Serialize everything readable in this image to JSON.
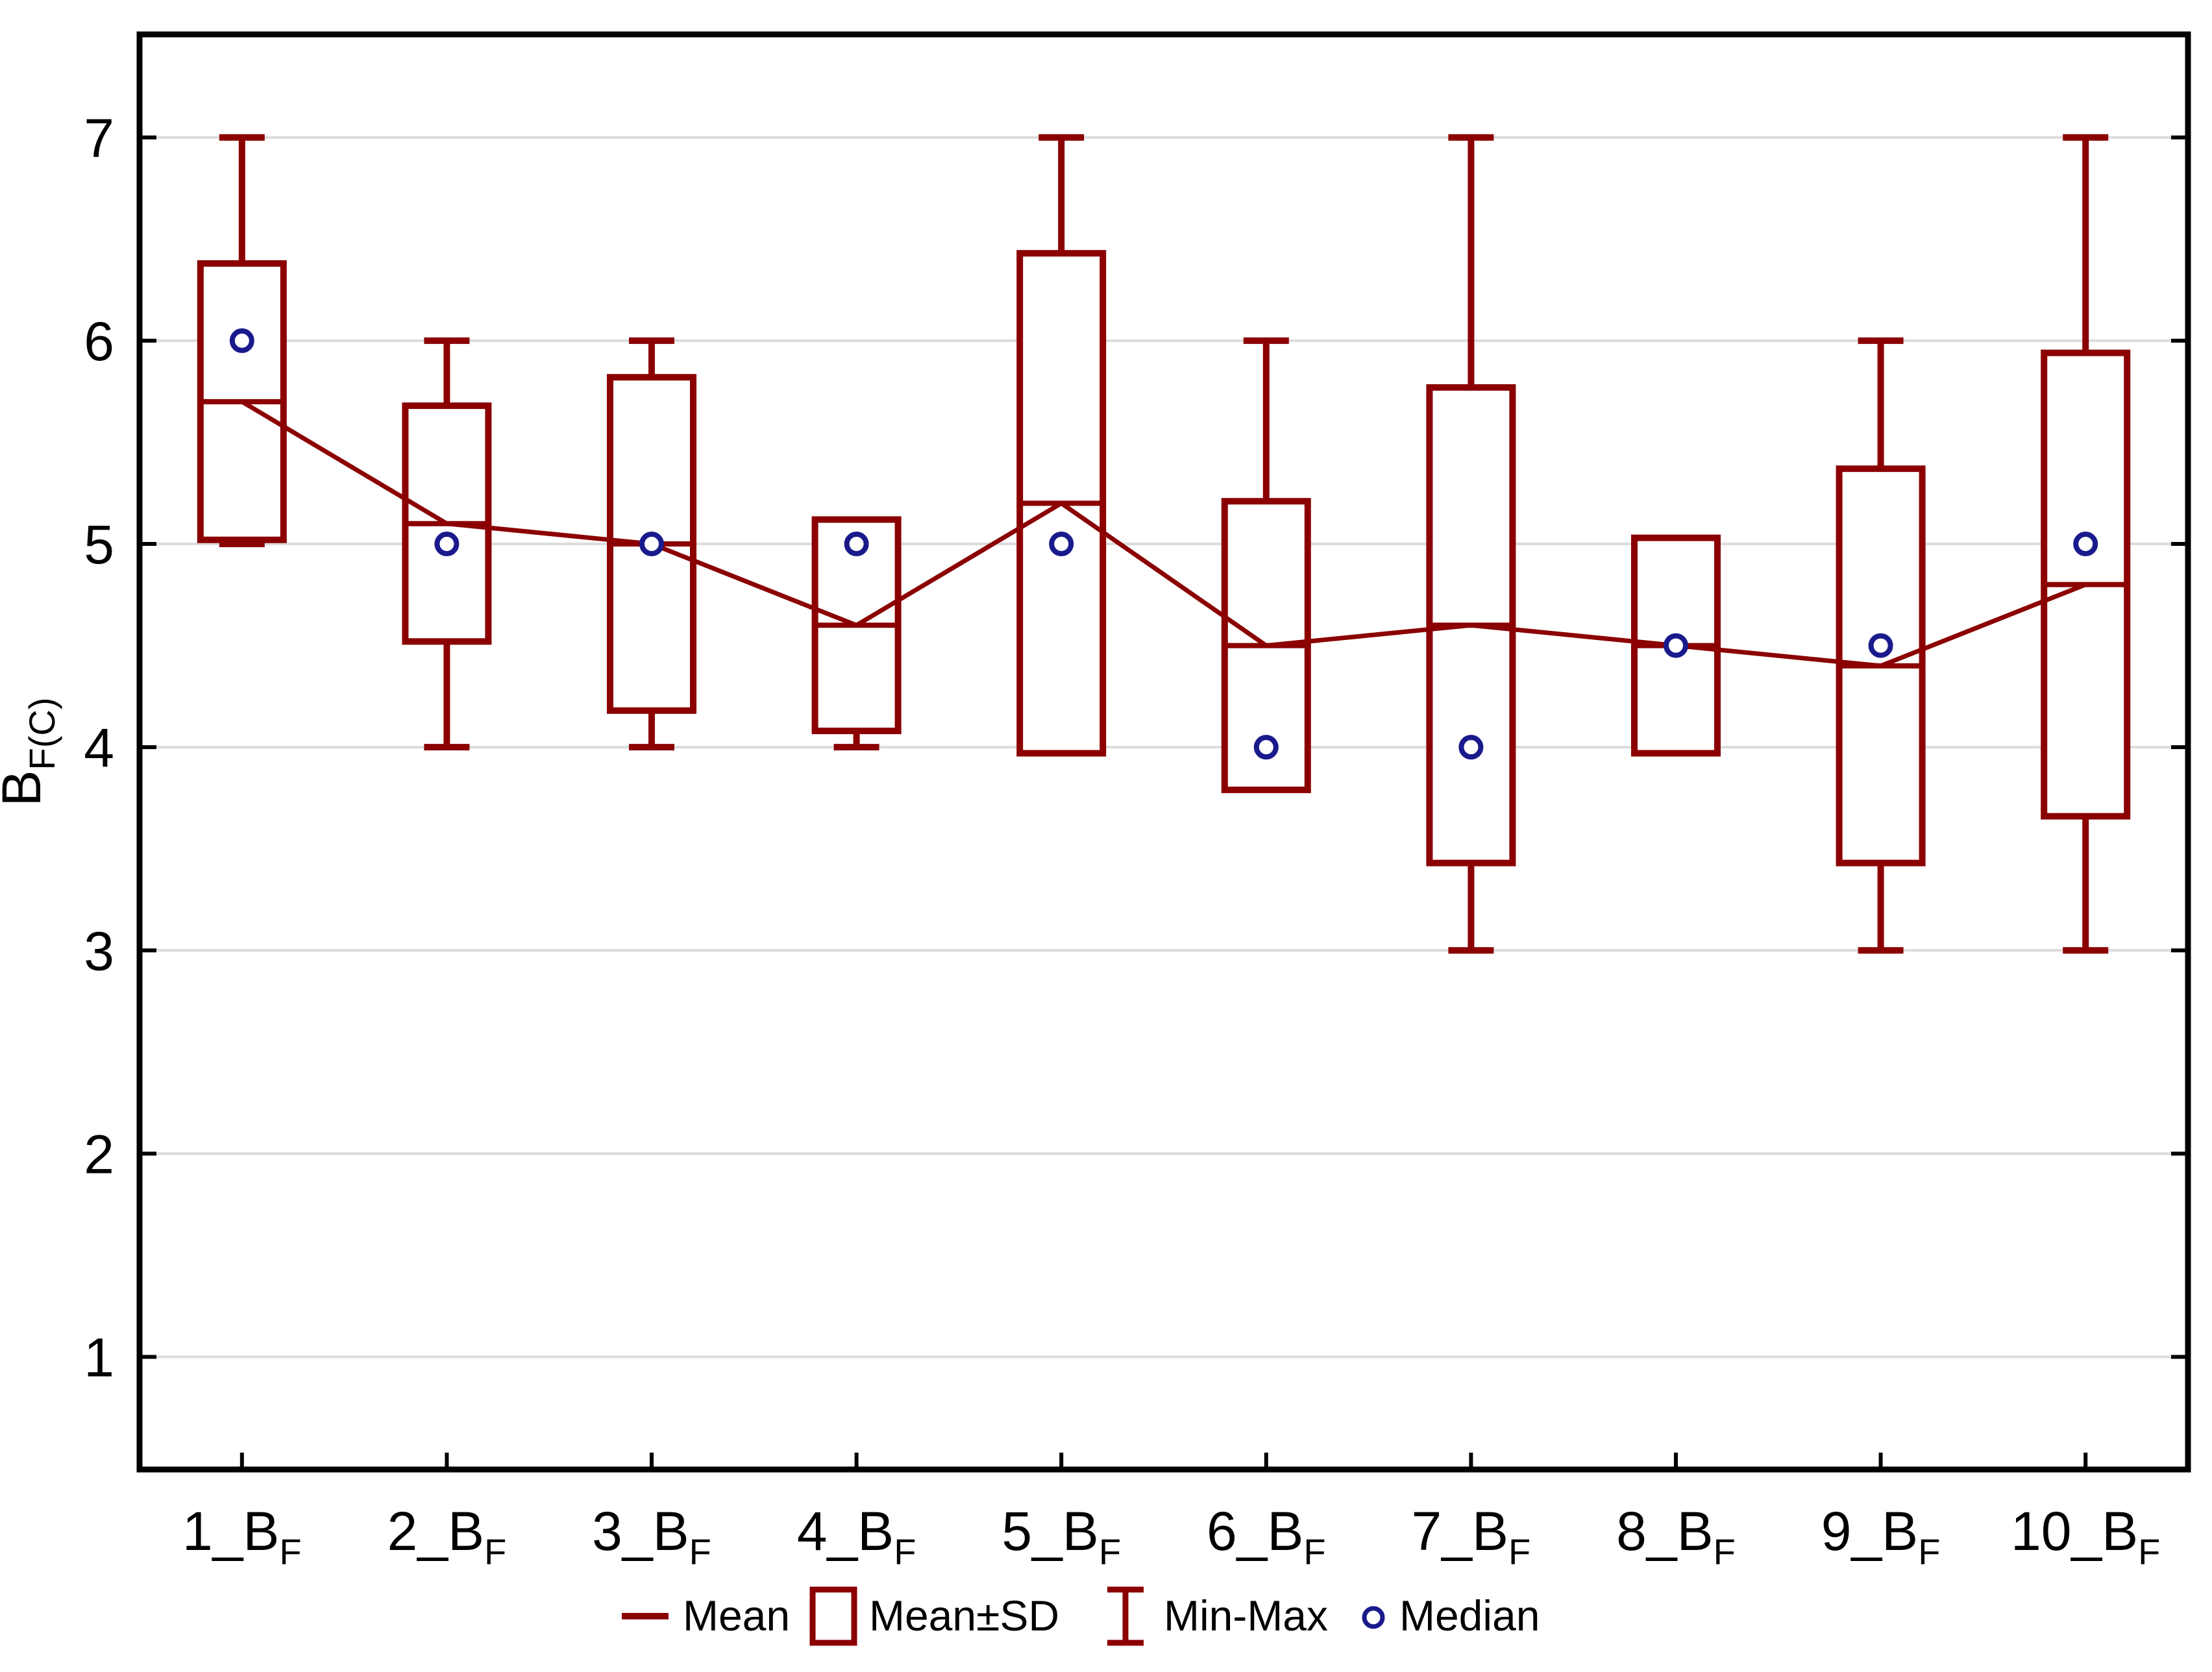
{
  "chart_data": {
    "type": "box",
    "title": "",
    "ylabel_main": "B",
    "ylabel_sub": "F(C)",
    "xlabel": "",
    "ylim": [
      0.446,
      7.507
    ],
    "yticks": [
      1,
      2,
      3,
      4,
      5,
      6,
      7
    ],
    "grid": "horizontal",
    "legend_position": "bottom-center",
    "colors": {
      "series": "#8B0000",
      "median": "#1A1A8C",
      "grid": "#DCDCDC",
      "axis": "#000000",
      "background": "#FFFFFF",
      "box_fill": "#FFFFFF"
    },
    "categories": [
      {
        "main": "1_B",
        "sub": "F"
      },
      {
        "main": "2_B",
        "sub": "F"
      },
      {
        "main": "3_B",
        "sub": "F"
      },
      {
        "main": "4_B",
        "sub": "F"
      },
      {
        "main": "5_B",
        "sub": "F"
      },
      {
        "main": "6_B",
        "sub": "F"
      },
      {
        "main": "7_B",
        "sub": "F"
      },
      {
        "main": "8_B",
        "sub": "F"
      },
      {
        "main": "9_B",
        "sub": "F"
      },
      {
        "main": "10_B",
        "sub": "F"
      }
    ],
    "groups": [
      {
        "label": "1_B_F",
        "min": 5.0,
        "sd_low": 5.02,
        "mean": 5.7,
        "median": 6.0,
        "sd_high": 6.38,
        "max": 7.0
      },
      {
        "label": "2_B_F",
        "min": 4.0,
        "sd_low": 4.52,
        "mean": 5.1,
        "median": 5.0,
        "sd_high": 5.68,
        "max": 6.0
      },
      {
        "label": "3_B_F",
        "min": 4.0,
        "sd_low": 4.18,
        "mean": 5.0,
        "median": 5.0,
        "sd_high": 5.82,
        "max": 6.0
      },
      {
        "label": "4_B_F",
        "min": 4.0,
        "sd_low": 4.08,
        "mean": 4.6,
        "median": 5.0,
        "sd_high": 5.12,
        "max": 5.0
      },
      {
        "label": "5_B_F",
        "min": 4.0,
        "sd_low": 3.97,
        "mean": 5.2,
        "median": 5.0,
        "sd_high": 6.43,
        "max": 7.0
      },
      {
        "label": "6_B_F",
        "min": 4.0,
        "sd_low": 3.79,
        "mean": 4.5,
        "median": 4.0,
        "sd_high": 5.21,
        "max": 6.0
      },
      {
        "label": "7_B_F",
        "min": 3.0,
        "sd_low": 3.43,
        "mean": 4.6,
        "median": 4.0,
        "sd_high": 5.77,
        "max": 7.0
      },
      {
        "label": "8_B_F",
        "min": 4.0,
        "sd_low": 3.97,
        "mean": 4.5,
        "median": 4.5,
        "sd_high": 5.03,
        "max": 5.0
      },
      {
        "label": "9_B_F",
        "min": 3.0,
        "sd_low": 3.43,
        "mean": 4.4,
        "median": 4.5,
        "sd_high": 5.37,
        "max": 6.0
      },
      {
        "label": "10_B_F",
        "min": 3.0,
        "sd_low": 3.66,
        "mean": 4.8,
        "median": 5.0,
        "sd_high": 5.94,
        "max": 7.0
      }
    ],
    "legend": [
      {
        "swatch": "line",
        "label": "Mean"
      },
      {
        "swatch": "box",
        "label": "Mean±SD"
      },
      {
        "swatch": "whisker",
        "label": "Min-Max"
      },
      {
        "swatch": "dot",
        "label": "Median"
      }
    ]
  }
}
